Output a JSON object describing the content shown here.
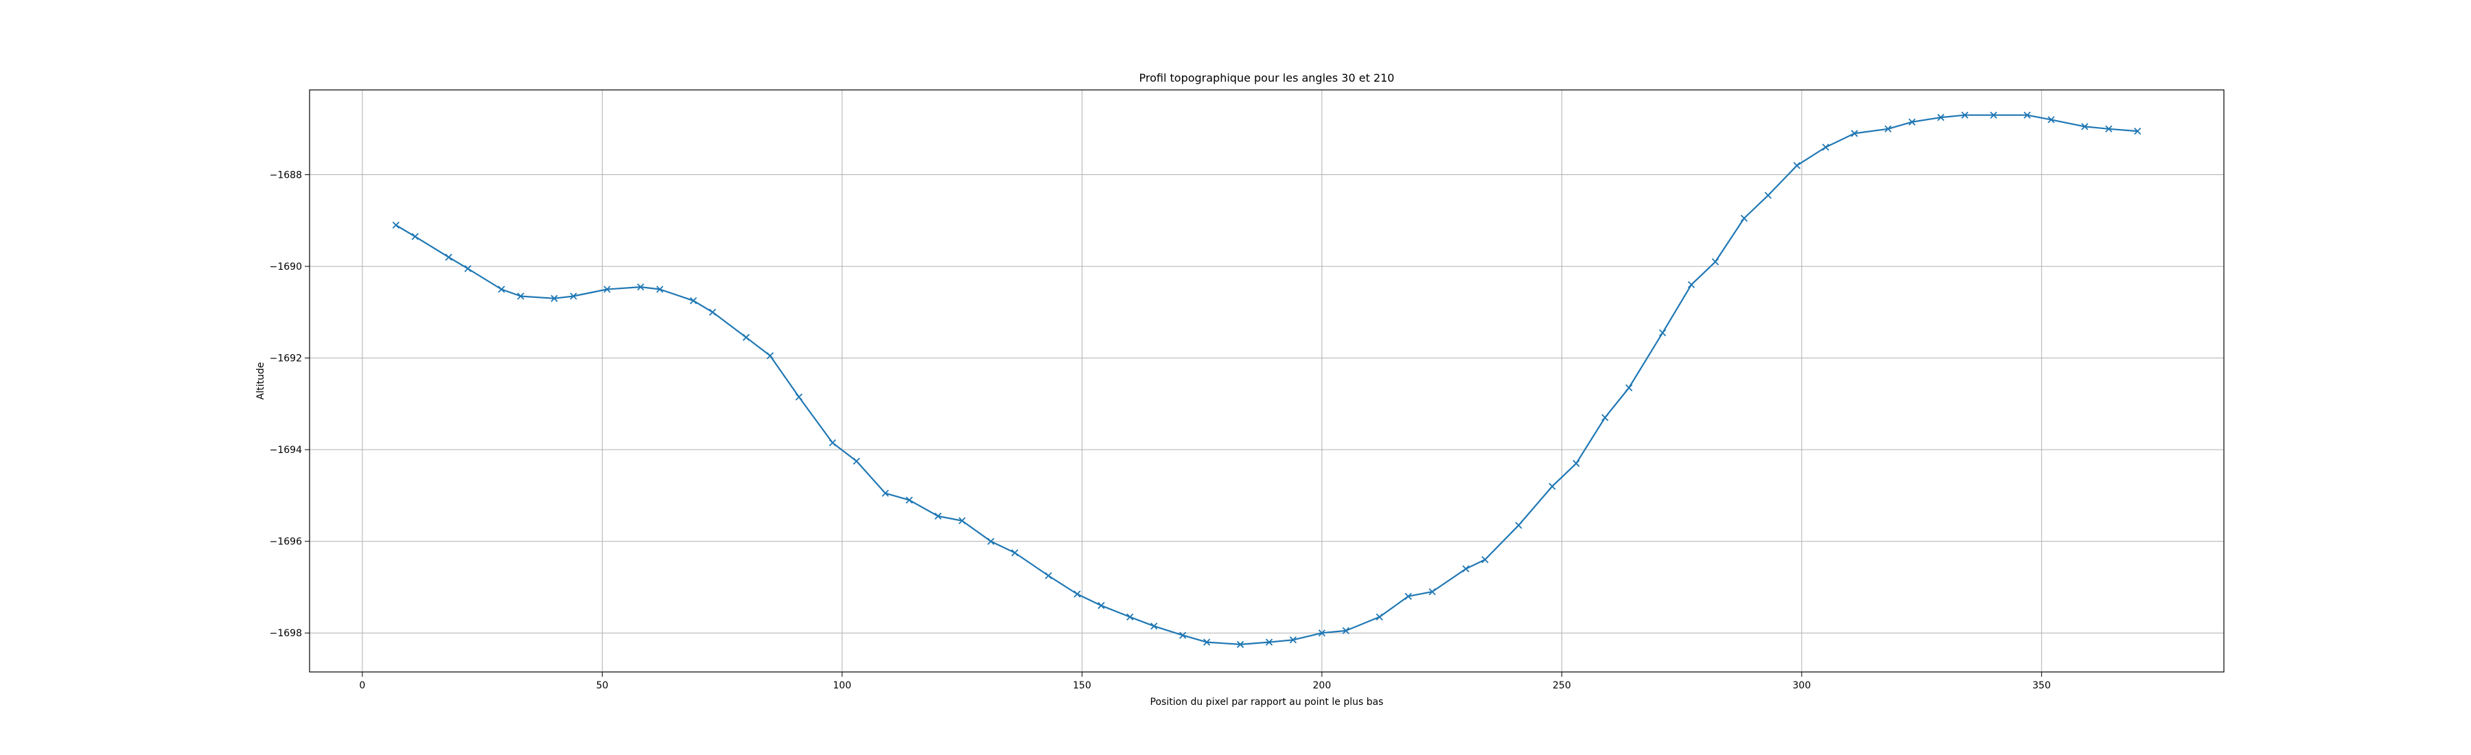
{
  "chart_data": {
    "type": "line",
    "title": "Profil topographique pour les angles 30 et 210",
    "xlabel": "Position du pixel par rapport au point le plus bas",
    "ylabel": "Altitude",
    "xlim": [
      -11,
      388
    ],
    "ylim": [
      -1698.85,
      -1686.15
    ],
    "xticks": [
      0,
      50,
      100,
      150,
      200,
      250,
      300,
      350
    ],
    "xtick_labels": [
      "0",
      "50",
      "100",
      "150",
      "200",
      "250",
      "300",
      "350"
    ],
    "yticks": [
      -1688,
      -1690,
      -1692,
      -1694,
      -1696,
      -1698
    ],
    "ytick_labels": [
      "−1688",
      "−1690",
      "−1692",
      "−1694",
      "−1696",
      "−1698"
    ],
    "grid": true,
    "marker": "x",
    "color": "#1f77b4",
    "series": [
      {
        "x": [
          7,
          11,
          18,
          22,
          29,
          33,
          40,
          44,
          51,
          58,
          62,
          69,
          73,
          80,
          85,
          91,
          98,
          103,
          109,
          114,
          120,
          125,
          131,
          136,
          143,
          149,
          154,
          160,
          165,
          171,
          176,
          183,
          189,
          194,
          200,
          205,
          212,
          218,
          223,
          230,
          234,
          241,
          248,
          253,
          259,
          264,
          271,
          277,
          282,
          288,
          293,
          299,
          305,
          311,
          318,
          323,
          329,
          334,
          340,
          347,
          352,
          359,
          364,
          370
        ],
        "y": [
          -1689.1,
          -1689.35,
          -1689.8,
          -1690.05,
          -1690.5,
          -1690.65,
          -1690.7,
          -1690.65,
          -1690.5,
          -1690.45,
          -1690.5,
          -1690.75,
          -1691.0,
          -1691.55,
          -1691.95,
          -1692.85,
          -1693.85,
          -1694.25,
          -1694.95,
          -1695.1,
          -1695.45,
          -1695.55,
          -1696.0,
          -1696.25,
          -1696.75,
          -1697.15,
          -1697.4,
          -1697.65,
          -1697.85,
          -1698.05,
          -1698.2,
          -1698.25,
          -1698.2,
          -1698.15,
          -1698.0,
          -1697.95,
          -1697.65,
          -1697.2,
          -1697.1,
          -1696.6,
          -1696.4,
          -1695.65,
          -1694.8,
          -1694.3,
          -1693.3,
          -1692.65,
          -1691.45,
          -1690.4,
          -1689.9,
          -1688.95,
          -1688.45,
          -1687.8,
          -1687.4,
          -1687.1,
          -1687.0,
          -1686.85,
          -1686.75,
          -1686.7,
          -1686.7,
          -1686.7,
          -1686.8,
          -1686.95,
          -1687.0,
          -1687.05
        ]
      }
    ]
  }
}
